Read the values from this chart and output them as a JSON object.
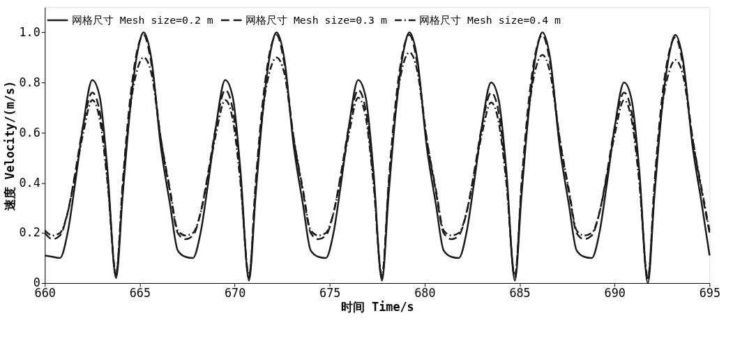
{
  "chart_data": {
    "type": "line",
    "xlabel": "时间 Time/s",
    "ylabel": "速度 Velocity/(m/s)",
    "x": [
      660,
      660.4,
      660.8,
      661.2,
      661.6,
      662,
      662.5,
      662.9,
      663.3,
      663.75,
      664.1,
      664.5,
      664.9,
      665.2,
      665.6,
      666.1,
      666.6,
      667,
      667.4,
      667.8,
      668.2,
      668.6,
      669,
      669.5,
      669.9,
      670.3,
      670.75,
      671.1,
      671.5,
      671.9,
      672.2,
      672.6,
      673.1,
      673.6,
      674,
      674.4,
      674.8,
      675.2,
      675.6,
      676,
      676.5,
      676.9,
      677.3,
      677.75,
      678.1,
      678.5,
      678.9,
      679.2,
      679.6,
      680.1,
      680.6,
      681,
      681.4,
      681.8,
      682.2,
      682.6,
      683,
      683.5,
      683.9,
      684.3,
      684.75,
      685.1,
      685.5,
      685.9,
      686.2,
      686.6,
      687.1,
      687.6,
      688,
      688.4,
      688.8,
      689.2,
      689.6,
      690,
      690.5,
      690.9,
      691.3,
      691.75,
      692.1,
      692.5,
      692.9,
      693.2,
      693.6,
      694.1,
      694.6,
      695
    ],
    "series": [
      {
        "name": "网格尺寸 Mesh size=0.2 m",
        "color": "#1a1a1a",
        "line_style": "solid",
        "values": [
          0.11,
          0.105,
          0.1,
          0.2,
          0.4,
          0.62,
          0.81,
          0.74,
          0.45,
          0.02,
          0.35,
          0.7,
          0.93,
          1.0,
          0.9,
          0.55,
          0.31,
          0.13,
          0.105,
          0.1,
          0.2,
          0.4,
          0.62,
          0.81,
          0.74,
          0.45,
          0.01,
          0.35,
          0.7,
          0.93,
          1.0,
          0.9,
          0.55,
          0.31,
          0.13,
          0.105,
          0.1,
          0.2,
          0.4,
          0.62,
          0.81,
          0.74,
          0.45,
          0.01,
          0.35,
          0.7,
          0.93,
          1.0,
          0.9,
          0.55,
          0.31,
          0.13,
          0.105,
          0.1,
          0.2,
          0.4,
          0.62,
          0.8,
          0.73,
          0.45,
          0.01,
          0.35,
          0.7,
          0.93,
          1.0,
          0.9,
          0.55,
          0.31,
          0.13,
          0.105,
          0.1,
          0.2,
          0.4,
          0.62,
          0.8,
          0.73,
          0.45,
          0.0,
          0.35,
          0.7,
          0.92,
          0.99,
          0.89,
          0.55,
          0.31,
          0.11
        ]
      },
      {
        "name": "网格尺寸 Mesh size=0.3 m",
        "color": "#1a1a1a",
        "line_style": "dashed",
        "values": [
          0.2,
          0.175,
          0.19,
          0.28,
          0.44,
          0.62,
          0.76,
          0.68,
          0.42,
          0.03,
          0.4,
          0.74,
          0.94,
          0.99,
          0.88,
          0.58,
          0.36,
          0.2,
          0.175,
          0.19,
          0.28,
          0.44,
          0.62,
          0.77,
          0.69,
          0.42,
          0.02,
          0.4,
          0.74,
          0.94,
          0.99,
          0.88,
          0.58,
          0.36,
          0.2,
          0.175,
          0.19,
          0.28,
          0.44,
          0.62,
          0.77,
          0.69,
          0.42,
          0.02,
          0.4,
          0.74,
          0.94,
          0.99,
          0.88,
          0.58,
          0.36,
          0.2,
          0.175,
          0.19,
          0.28,
          0.44,
          0.62,
          0.76,
          0.68,
          0.42,
          0.02,
          0.4,
          0.74,
          0.94,
          0.99,
          0.88,
          0.58,
          0.36,
          0.2,
          0.175,
          0.19,
          0.28,
          0.44,
          0.62,
          0.76,
          0.68,
          0.42,
          0.01,
          0.4,
          0.74,
          0.93,
          0.98,
          0.87,
          0.58,
          0.36,
          0.2
        ]
      },
      {
        "name": "网格尺寸 Mesh size=0.4 m",
        "color": "#1a1a1a",
        "line_style": "dashdot",
        "values": [
          0.21,
          0.19,
          0.2,
          0.28,
          0.43,
          0.59,
          0.73,
          0.65,
          0.4,
          0.04,
          0.38,
          0.7,
          0.86,
          0.9,
          0.84,
          0.58,
          0.37,
          0.21,
          0.19,
          0.2,
          0.28,
          0.43,
          0.59,
          0.73,
          0.65,
          0.4,
          0.03,
          0.38,
          0.7,
          0.86,
          0.9,
          0.84,
          0.58,
          0.37,
          0.21,
          0.19,
          0.2,
          0.28,
          0.43,
          0.59,
          0.74,
          0.66,
          0.4,
          0.03,
          0.38,
          0.71,
          0.88,
          0.92,
          0.85,
          0.58,
          0.37,
          0.21,
          0.19,
          0.2,
          0.28,
          0.43,
          0.59,
          0.72,
          0.64,
          0.4,
          0.03,
          0.38,
          0.7,
          0.87,
          0.91,
          0.84,
          0.58,
          0.37,
          0.21,
          0.19,
          0.2,
          0.28,
          0.43,
          0.59,
          0.73,
          0.65,
          0.4,
          0.02,
          0.38,
          0.7,
          0.85,
          0.89,
          0.83,
          0.58,
          0.37,
          0.21
        ]
      }
    ],
    "xlim": [
      660,
      695
    ],
    "xticks": [
      660,
      665,
      670,
      675,
      680,
      685,
      690,
      695
    ],
    "ylim": [
      0,
      1.1
    ],
    "yticks": [
      0,
      0.2,
      0.4,
      0.6,
      0.8,
      {
        "value": 1,
        "label": "1.0"
      }
    ],
    "legend": "top",
    "grid": false,
    "marker": "none"
  }
}
